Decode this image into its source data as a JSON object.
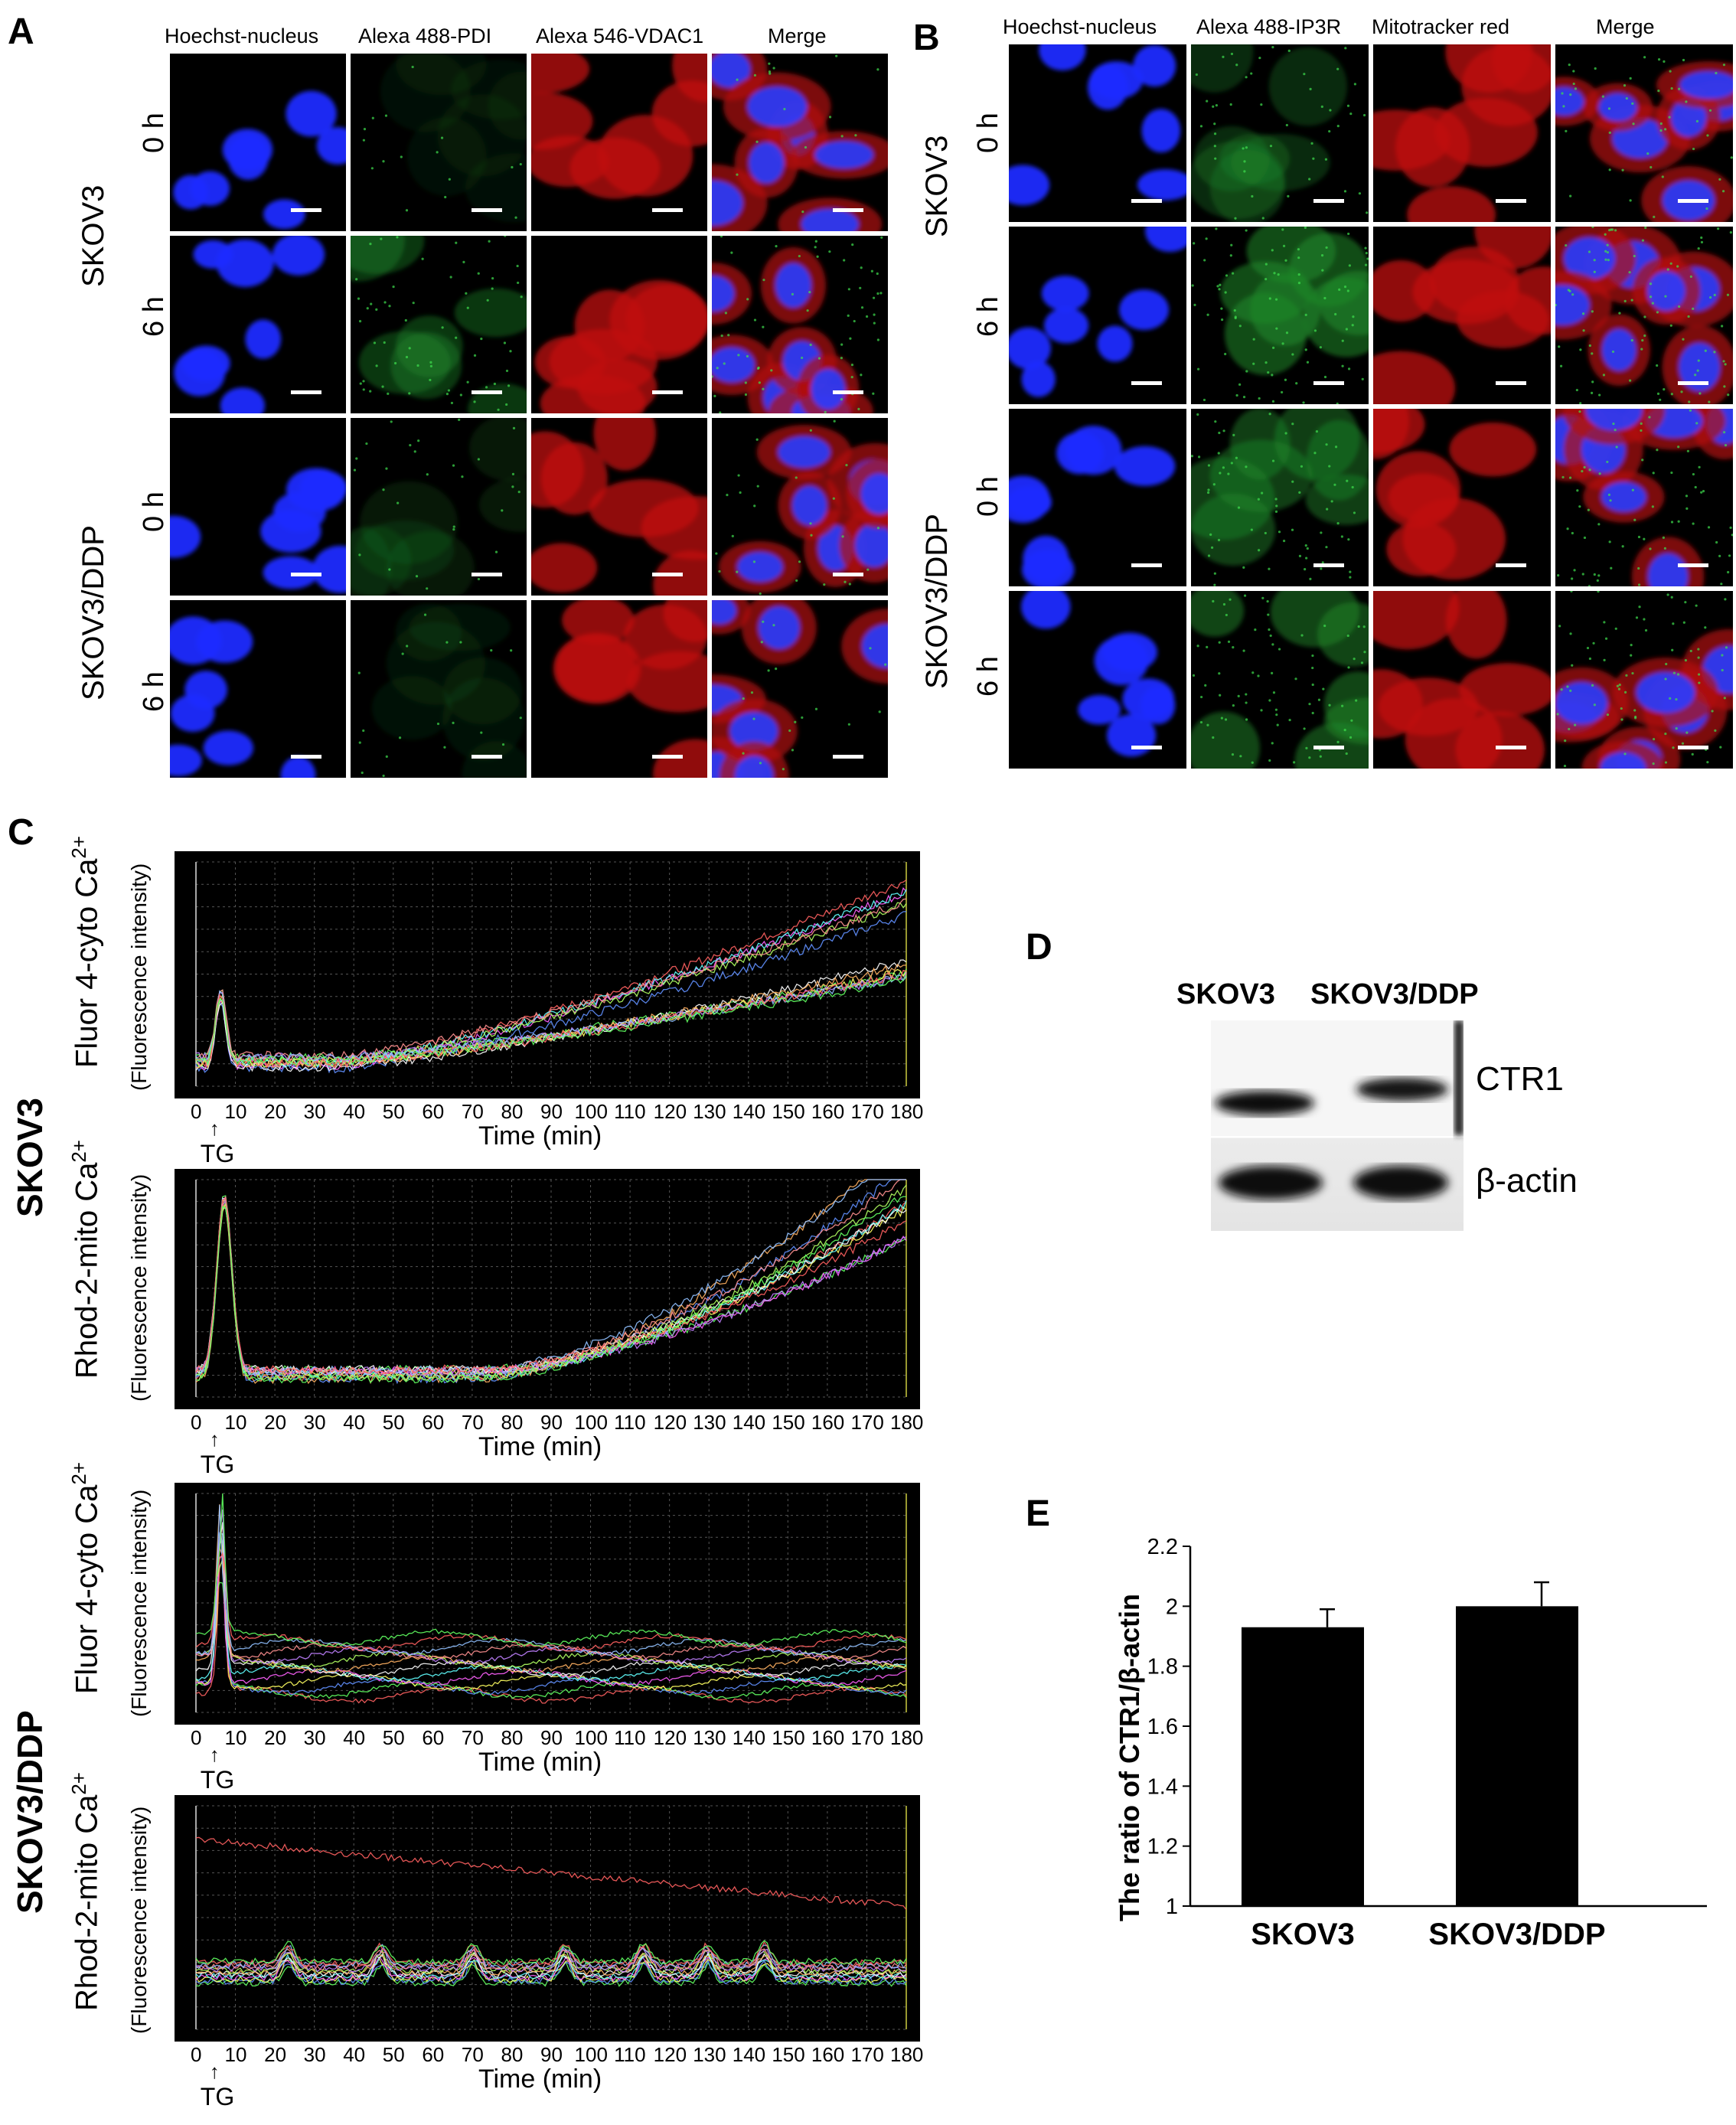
{
  "panels": {
    "A": {
      "label": "A",
      "columns": [
        "Hoechst-nucleus",
        "Alexa 488-PDI",
        "Alexa 546-VDAC1",
        "Merge"
      ],
      "groups": [
        "SKOV3",
        "SKOV3/DDP"
      ],
      "times": [
        "0 h",
        "6 h",
        "0 h",
        "6 h"
      ]
    },
    "B": {
      "label": "B",
      "columns": [
        "Hoechst-nucleus",
        "Alexa 488-IP3R",
        "Mitotracker red",
        "Merge"
      ],
      "groups": [
        "SKOV3",
        "SKOV3/DDP"
      ],
      "times": [
        "0 h",
        "6 h",
        "0 h",
        "6 h"
      ]
    },
    "C": {
      "label": "C",
      "groups": [
        "SKOV3",
        "SKOV3/DDP"
      ],
      "ylabels": [
        "Fluor 4-cyto Ca2+",
        "Rhod-2-mito Ca2+",
        "Fluor 4-cyto Ca2+",
        "Rhod-2-mito Ca2+"
      ],
      "ysub": "(Fluorescence intensity)",
      "xlabel": "Time (min)",
      "marker": "TG",
      "xticks": [
        "0",
        "10",
        "20",
        "30",
        "40",
        "50",
        "60",
        "70",
        "80",
        "90",
        "100",
        "110",
        "120",
        "130",
        "140",
        "150",
        "160",
        "170",
        "180"
      ]
    },
    "D": {
      "label": "D",
      "lanes": [
        "SKOV3",
        "SKOV3/DDP"
      ],
      "bands": [
        "CTR1",
        "β-actin"
      ]
    },
    "E": {
      "label": "E"
    }
  },
  "chart_data": {
    "type": "bar",
    "categories": [
      "SKOV3",
      "SKOV3/DDP"
    ],
    "values": [
      1.93,
      2.0
    ],
    "errors": [
      0.06,
      0.08
    ],
    "ylabel": "The ratio of CTR1/β-actin",
    "ylim": [
      1,
      2.2
    ],
    "yticks": [
      "1",
      "1.2",
      "1.4",
      "1.6",
      "1.8",
      "2",
      "2.2"
    ],
    "bar_color": "#000000"
  }
}
